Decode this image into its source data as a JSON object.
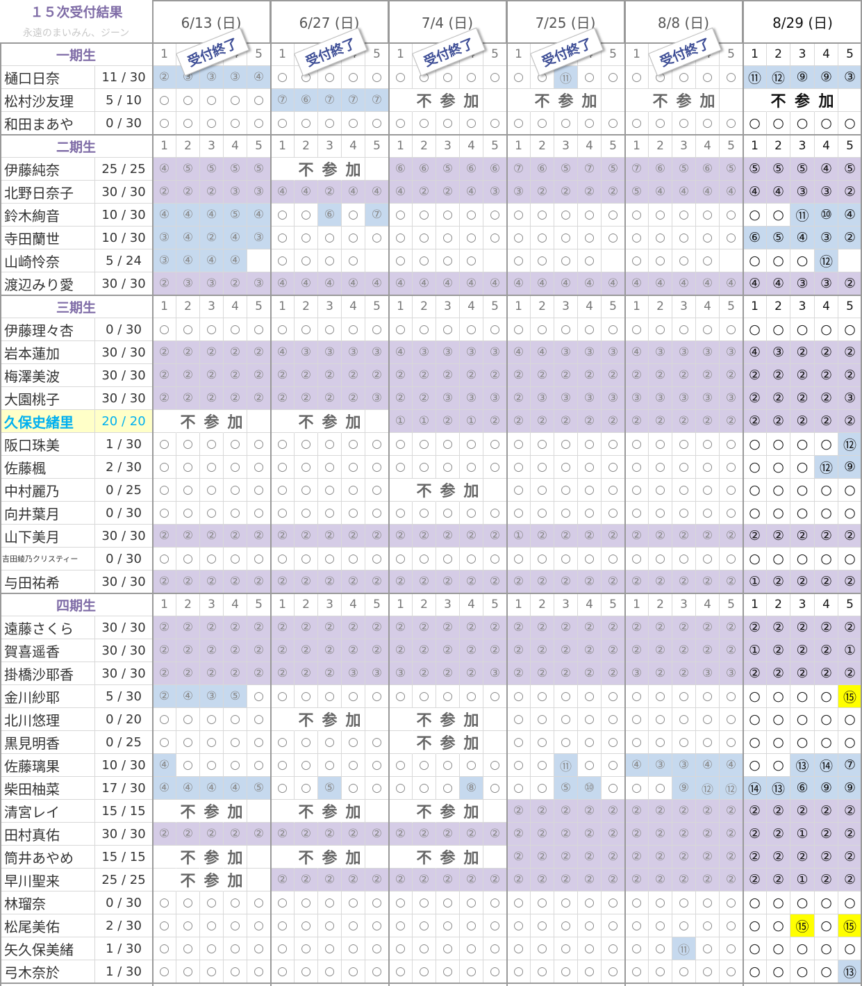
{
  "title": "１５次受付結果",
  "subtitle": "永遠のまいみん、ジーン",
  "dates": [
    "6/13 (日)",
    "6/27 (日)",
    "7/4 (日)",
    "7/25 (日)",
    "8/8 (日)",
    "8/29 (日)"
  ],
  "closed_stamp": "受付終了",
  "not_participating": [
    "不",
    "参",
    "加"
  ],
  "slot_numbers": [
    "1",
    "2",
    "3",
    "4",
    "5"
  ],
  "legend_colors": {
    "blue": "#C6D9EE",
    "purple": "#D5CCE6",
    "yellow": "#FFFF00"
  },
  "groups": [
    {
      "label": "一期生",
      "members": [
        {
          "name": "樋口日奈",
          "score": "11 / 30",
          "sessions": [
            "b2 b3 b3 b3 b4",
            "o o o o o",
            "o o o o o",
            "o o b11 o o",
            "o o o o o",
            "b11 b12 b9 b9 b3"
          ]
        },
        {
          "name": "松村沙友理",
          "score": "5 / 10",
          "sessions": [
            "o o o o o",
            "b7 b6 b7 b7 b7",
            "NP",
            "NP",
            "NP",
            "NP"
          ]
        },
        {
          "name": "和田まあや",
          "score": "0 / 30",
          "sessions": [
            "o o o o o",
            "o o o o o",
            "o o o o o",
            "o o o o o",
            "o o o o o",
            "o o o o o"
          ]
        }
      ]
    },
    {
      "label": "二期生",
      "members": [
        {
          "name": "伊藤純奈",
          "score": "25 / 25",
          "sessions": [
            "p4 p5 p5 p5 p5",
            "NP",
            "p6 p6 p5 p6 p6",
            "p7 p6 p5 p7 p5",
            "p7 p6 p5 p6 p5",
            "p5 p5 p5 p4 p5"
          ]
        },
        {
          "name": "北野日奈子",
          "score": "30 / 30",
          "sessions": [
            "p2 p2 p2 p3 p3",
            "p4 p4 p2 p4 p4",
            "p4 p2 p2 p4 p3",
            "p3 p2 p2 p2 p2",
            "p5 p4 p4 p4 p4",
            "p4 p4 p3 p3 p2"
          ]
        },
        {
          "name": "鈴木絢音",
          "score": "10 / 30",
          "sessions": [
            "b4 b4 b4 b5 b4",
            "o o b6 o b7",
            "o o o o o",
            "o o o o o",
            "o o o o o",
            "o o b11 b10 b4"
          ]
        },
        {
          "name": "寺田蘭世",
          "score": "10 / 30",
          "sessions": [
            "b3 b4 b2 b4 b3",
            "o o o o o",
            "o o o o o",
            "o o o o o",
            "o o o o o",
            "b6 b5 b4 b3 b2"
          ]
        },
        {
          "name": "山崎怜奈",
          "score": "5 / 24",
          "sessions": [
            "b3 b4 b4 b4 x",
            "o o o o x",
            "o o o o x",
            "o o o o x",
            "o o o o x",
            "o o o b12 x"
          ]
        },
        {
          "name": "渡辺みり愛",
          "score": "30 / 30",
          "sessions": [
            "p2 p3 p3 p2 p3",
            "p4 p4 p4 p4 p4",
            "p4 p4 p4 p4 p4",
            "p4 p4 p4 p4 p4",
            "p4 p4 p4 p4 p4",
            "p4 p4 p3 p3 p2"
          ]
        }
      ]
    },
    {
      "label": "三期生",
      "members": [
        {
          "name": "伊藤理々杏",
          "score": "0 / 30",
          "sessions": [
            "o o o o o",
            "o o o o o",
            "o o o o o",
            "o o o o o",
            "o o o o o",
            "o o o o o"
          ]
        },
        {
          "name": "岩本蓮加",
          "score": "30 / 30",
          "sessions": [
            "p2 p2 p2 p2 p2",
            "p4 p3 p3 p3 p3",
            "p4 p3 p3 p3 p3",
            "p4 p4 p3 p3 p3",
            "p4 p3 p3 p3 p3",
            "p4 p3 p2 p2 p2"
          ]
        },
        {
          "name": "梅澤美波",
          "score": "30 / 30",
          "sessions": [
            "p2 p2 p2 p2 p2",
            "p2 p2 p2 p2 p2",
            "p2 p2 p2 p2 p2",
            "p2 p2 p2 p2 p2",
            "p2 p2 p2 p2 p2",
            "p2 p2 p2 p2 p2"
          ]
        },
        {
          "name": "大園桃子",
          "score": "30 / 30",
          "sessions": [
            "p2 p2 p2 p2 p2",
            "p2 p2 p2 p2 p3",
            "p2 p2 p3 p3 p3",
            "p2 p3 p3 p3 p3",
            "p3 p3 p3 p3 p3",
            "p2 p2 p2 p2 p3"
          ]
        },
        {
          "name": "久保史緒里",
          "score": "20 / 20",
          "highlight": true,
          "sessions": [
            "NP",
            "NP",
            "p1 p1 p2 p1 p2",
            "p2 p2 p2 p2 p2",
            "p2 p2 p2 p2 p2",
            "p2 p2 p2 p2 p2"
          ]
        },
        {
          "name": "阪口珠美",
          "score": "1 / 30",
          "sessions": [
            "o o o o o",
            "o o o o o",
            "o o o o o",
            "o o o o o",
            "o o o o o",
            "o o o o b12"
          ]
        },
        {
          "name": "佐藤楓",
          "score": "2 / 30",
          "sessions": [
            "o o o o o",
            "o o o o o",
            "o o o o o",
            "o o o o o",
            "o o o o o",
            "o o o b12 b9"
          ]
        },
        {
          "name": "中村麗乃",
          "score": "0 / 25",
          "sessions": [
            "o o o o o",
            "o o o o o",
            "NP",
            "o o o o o",
            "o o o o o",
            "o o o o o"
          ]
        },
        {
          "name": "向井葉月",
          "score": "0 / 30",
          "sessions": [
            "o o o o o",
            "o o o o o",
            "o o o o o",
            "o o o o o",
            "o o o o o",
            "o o o o o"
          ]
        },
        {
          "name": "山下美月",
          "score": "30 / 30",
          "sessions": [
            "p2 p2 p2 p2 p2",
            "p2 p2 p2 p2 p2",
            "p2 p2 p2 p2 p2",
            "p1 p2 p2 p2 p2",
            "p2 p2 p2 p2 p2",
            "p2 p2 p2 p2 p2"
          ]
        },
        {
          "name": "吉田綾乃クリスティー",
          "score": "0 / 30",
          "small": true,
          "sessions": [
            "o o o o o",
            "o o o o o",
            "o o o o o",
            "o o o o o",
            "o o o o o",
            "o o o o o"
          ]
        },
        {
          "name": "与田祐希",
          "score": "30 / 30",
          "sessions": [
            "p2 p2 p2 p2 p2",
            "p2 p2 p2 p2 p2",
            "p2 p2 p2 p2 p2",
            "p2 p2 p2 p2 p2",
            "p2 p2 p2 p2 p2",
            "p1 p2 p2 p2 p2"
          ]
        }
      ]
    },
    {
      "label": "四期生",
      "members": [
        {
          "name": "遠藤さくら",
          "score": "30 / 30",
          "sessions": [
            "p2 p2 p2 p2 p2",
            "p2 p2 p2 p2 p2",
            "p2 p2 p2 p2 p2",
            "p2 p2 p2 p2 p2",
            "p2 p2 p2 p2 p2",
            "p2 p2 p2 p2 p2"
          ]
        },
        {
          "name": "賀喜遥香",
          "score": "30 / 30",
          "sessions": [
            "p2 p2 p2 p2 p2",
            "p2 p2 p2 p2 p2",
            "p2 p2 p2 p2 p2",
            "p2 p2 p2 p2 p2",
            "p2 p2 p2 p2 p2",
            "p1 p2 p2 p2 p1"
          ]
        },
        {
          "name": "掛橋沙耶香",
          "score": "30 / 30",
          "sessions": [
            "p2 p2 p2 p2 p2",
            "p2 p2 p2 p3 p3",
            "p3 p2 p2 p2 p3",
            "p2 p2 p2 p2 p2",
            "p3 p2 p2 p3 p3",
            "p2 p2 p2 p2 p2"
          ]
        },
        {
          "name": "金川紗耶",
          "score": "5 / 30",
          "sessions": [
            "b2 b4 b3 b5 o",
            "o o o o o",
            "o o o o o",
            "o o o o o",
            "o o o o o",
            "o o o o y15"
          ]
        },
        {
          "name": "北川悠理",
          "score": "0 / 20",
          "sessions": [
            "o o o o o",
            "NP",
            "NP",
            "o o o o o",
            "o o o o o",
            "o o o o o"
          ]
        },
        {
          "name": "黒見明香",
          "score": "0 / 25",
          "sessions": [
            "o o o o o",
            "o o o o o",
            "NP",
            "o o o o o",
            "o o o o o",
            "o o o o o"
          ]
        },
        {
          "name": "佐藤璃果",
          "score": "10 / 30",
          "sessions": [
            "b4 o o o o",
            "o o o o o",
            "o o o o o",
            "o o b11 o o",
            "b4 b3 b3 b4 b4",
            "o o b13 b14 b7"
          ]
        },
        {
          "name": "柴田柚菜",
          "score": "17 / 30",
          "sessions": [
            "b4 b4 b4 b4 b5",
            "o o b5 o o",
            "o o o b8 o",
            "o o b5 b10 o",
            "o o b9 b12 b12",
            "b14 b13 b6 b9 b9"
          ]
        },
        {
          "name": "清宮レイ",
          "score": "15 / 15",
          "sessions": [
            "NP",
            "NP",
            "NP",
            "p2 p2 p2 p2 p2",
            "p2 p2 p2 p2 p2",
            "p2 p2 p2 p2 p2"
          ]
        },
        {
          "name": "田村真佑",
          "score": "30 / 30",
          "sessions": [
            "p2 p2 p2 p2 p2",
            "p2 p2 p2 p2 p2",
            "p2 p2 p2 p2 p2",
            "p2 p2 p2 p2 p2",
            "p2 p2 p2 p2 p2",
            "p2 p2 p1 p2 p2"
          ]
        },
        {
          "name": "筒井あやめ",
          "score": "15 / 15",
          "sessions": [
            "NP",
            "NP",
            "NP",
            "p2 p2 p2 p2 p2",
            "p2 p2 p2 p2 p2",
            "p2 p2 p2 p2 p2"
          ]
        },
        {
          "name": "早川聖来",
          "score": "25 / 25",
          "sessions": [
            "NP",
            "p2 p2 p2 p2 p2",
            "p2 p2 p2 p2 p2",
            "p2 p2 p2 p2 p2",
            "p2 p2 p2 p2 p2",
            "p2 p2 p1 p2 p2"
          ]
        },
        {
          "name": "林瑠奈",
          "score": "0 / 30",
          "sessions": [
            "o o o o o",
            "o o o o o",
            "o o o o o",
            "o o o o o",
            "o o o o o",
            "o o o o o"
          ]
        },
        {
          "name": "松尾美佑",
          "score": "2 / 30",
          "sessions": [
            "o o o o o",
            "o o o o o",
            "o o o o o",
            "o o o o o",
            "o o o o o",
            "o o y15 o y15"
          ]
        },
        {
          "name": "矢久保美緒",
          "score": "1 / 30",
          "sessions": [
            "o o o o o",
            "o o o o o",
            "o o o o o",
            "o o o o o",
            "o o b11 o o",
            "o o o o o"
          ]
        },
        {
          "name": "弓木奈於",
          "score": "1 / 30",
          "sessions": [
            "o o o o o",
            "o o o o o",
            "o o o o o",
            "o o o o o",
            "o o o o o",
            "o o o o b13"
          ]
        }
      ]
    }
  ]
}
